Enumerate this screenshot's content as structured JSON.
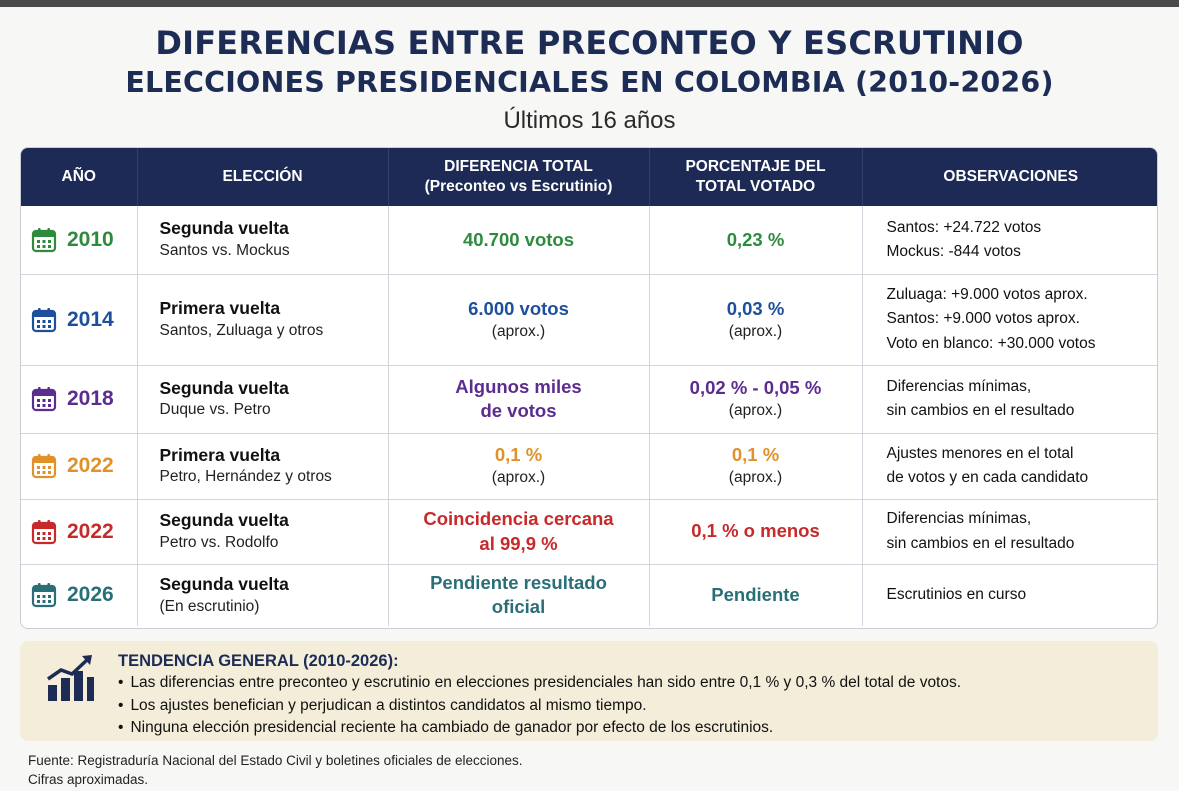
{
  "header": {
    "title_line1": "DIFERENCIAS ENTRE PRECONTEO Y ESCRUTINIO",
    "title_line2": "ELECCIONES PRESIDENCIALES EN COLOMBIA (2010-2026)",
    "subtitle": "Últimos 16 años"
  },
  "table": {
    "columns": [
      {
        "line1": "AÑO",
        "line2": ""
      },
      {
        "line1": "ELECCIÓN",
        "line2": ""
      },
      {
        "line1": "DIFERENCIA TOTAL",
        "line2": "(Preconteo vs Escrutinio)"
      },
      {
        "line1": "PORCENTAJE DEL",
        "line2": "TOTAL VOTADO"
      },
      {
        "line1": "OBSERVACIONES",
        "line2": ""
      }
    ],
    "rows": [
      {
        "year": "2010",
        "color": "#2e8b3e",
        "icon": "calendar-icon",
        "election_type": "Segunda vuelta",
        "election_detail": "Santos vs. Mockus",
        "difference": [
          "40.700 votos"
        ],
        "difference_note": "",
        "percentage": [
          "0,23 %"
        ],
        "percentage_note": "",
        "observations": [
          "Santos: +24.722 votos",
          "Mockus: -844 votos"
        ]
      },
      {
        "year": "2014",
        "color": "#1e4f9c",
        "icon": "calendar-icon",
        "election_type": "Primera vuelta",
        "election_detail": "Santos, Zuluaga y otros",
        "difference": [
          "6.000 votos"
        ],
        "difference_note": "(aprox.)",
        "percentage": [
          "0,03 %"
        ],
        "percentage_note": "(aprox.)",
        "observations": [
          "Zuluaga: +9.000 votos aprox.",
          "Santos: +9.000 votos aprox.",
          "Voto en blanco: +30.000 votos"
        ]
      },
      {
        "year": "2018",
        "color": "#5b2d8e",
        "icon": "calendar-icon",
        "election_type": "Segunda vuelta",
        "election_detail": "Duque vs. Petro",
        "difference": [
          "Algunos miles",
          "de votos"
        ],
        "difference_note": "",
        "percentage": [
          "0,02 % - 0,05 %"
        ],
        "percentage_note": "(aprox.)",
        "observations": [
          "Diferencias mínimas,",
          "sin cambios en el resultado"
        ]
      },
      {
        "year": "2022",
        "color": "#e0912a",
        "icon": "calendar-icon",
        "election_type": "Primera vuelta",
        "election_detail": "Petro, Hernández y otros",
        "difference": [
          "0,1 %"
        ],
        "difference_note": "(aprox.)",
        "percentage": [
          "0,1 %"
        ],
        "percentage_note": "(aprox.)",
        "observations": [
          "Ajustes menores en el total",
          "de votos y en cada candidato"
        ]
      },
      {
        "year": "2022",
        "color": "#c62a2a",
        "icon": "calendar-icon",
        "election_type": "Segunda vuelta",
        "election_detail": "Petro vs. Rodolfo",
        "difference": [
          "Coincidencia cercana",
          "al 99,9 %"
        ],
        "difference_note": "",
        "percentage": [
          "0,1 % o menos"
        ],
        "percentage_note": "",
        "observations": [
          "Diferencias mínimas,",
          "sin cambios en el resultado"
        ]
      },
      {
        "year": "2026",
        "color": "#2a6f78",
        "icon": "calendar-icon",
        "election_type": "Segunda vuelta",
        "election_detail": "(En escrutinio)",
        "difference": [
          "Pendiente resultado",
          "oficial"
        ],
        "difference_note": "",
        "percentage": [
          "Pendiente"
        ],
        "percentage_note": "",
        "observations": [
          "Escrutinios en curso"
        ]
      }
    ]
  },
  "trend": {
    "icon": "bar-chart-trend-icon",
    "title": "TENDENCIA GENERAL (2010-2026):",
    "bullets": [
      "Las diferencias entre preconteo y escrutinio en elecciones presidenciales han sido entre 0,1 % y 0,3 % del total de votos.",
      "Los ajustes benefician y perjudican a distintos candidatos al mismo tiempo.",
      "Ninguna elección presidencial reciente ha cambiado de ganador por efecto de los escrutinios."
    ]
  },
  "footer": {
    "source": "Fuente: Registraduría Nacional del Estado Civil y boletines oficiales de elecciones.",
    "note": "Cifras aproximadas."
  },
  "colors": {
    "header_bg": "#1d2a55",
    "title": "#1c2c55",
    "trend_bg": "#f3edd9"
  }
}
